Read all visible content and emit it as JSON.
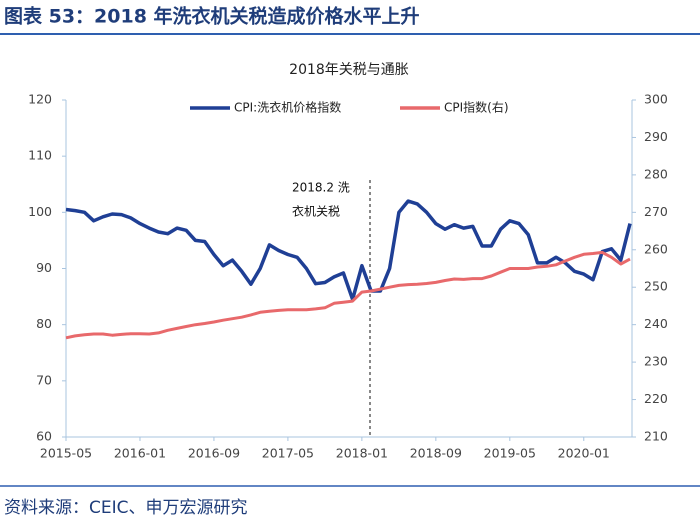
{
  "header": {
    "title": "图表 53：2018 年洗衣机关税造成价格水平上升"
  },
  "source": "资料来源：CEIC、申万宏源研究",
  "chart_data": {
    "type": "line",
    "title": "2018年关税与通胀",
    "annotation": [
      "2018.2 洗",
      "衣机关税"
    ],
    "categories": [
      "2015-05",
      null,
      null,
      null,
      null,
      null,
      null,
      null,
      "2016-01",
      null,
      null,
      null,
      null,
      null,
      null,
      null,
      "2016-09",
      null,
      null,
      null,
      null,
      null,
      null,
      null,
      "2017-05",
      null,
      null,
      null,
      null,
      null,
      null,
      null,
      "2018-01",
      null,
      null,
      null,
      null,
      null,
      null,
      null,
      "2018-09",
      null,
      null,
      null,
      null,
      null,
      null,
      null,
      "2019-05",
      null,
      null,
      null,
      null,
      null,
      null,
      null,
      "2020-01",
      null,
      null,
      null,
      null,
      null
    ],
    "ylim": [
      60,
      120
    ],
    "yticks": [
      60,
      70,
      80,
      90,
      100,
      110,
      120
    ],
    "y2lim": [
      210,
      300
    ],
    "y2ticks": [
      210,
      220,
      230,
      240,
      250,
      260,
      270,
      280,
      290,
      300
    ],
    "series": [
      {
        "name": "CPI:洗衣机价格指数",
        "color": "#1f3f95",
        "values": [
          100.5,
          100.3,
          100,
          98.5,
          99.2,
          99.7,
          99.6,
          99,
          98,
          97.2,
          96.5,
          96.2,
          97.2,
          96.8,
          95,
          94.8,
          92.5,
          90.5,
          91.5,
          89.5,
          87.2,
          90,
          94.2,
          93.2,
          92.5,
          92,
          90,
          87.3,
          87.5,
          88.5,
          89.2,
          84.5,
          90.5,
          86,
          86,
          90,
          100,
          102,
          101.5,
          100,
          98,
          97,
          97.8,
          97.2,
          97.5,
          94,
          94,
          97,
          98.5,
          98,
          96,
          91,
          91,
          92,
          91,
          89.5,
          89,
          88,
          93,
          93.5,
          91.5,
          98
        ]
      },
      {
        "name": "CPI指数(右)",
        "color": "#e8696b",
        "axis": "y2",
        "values": [
          236.5,
          237,
          237.3,
          237.5,
          237.5,
          237.2,
          237.4,
          237.6,
          237.6,
          237.5,
          237.8,
          238.5,
          239,
          239.5,
          240,
          240.3,
          240.7,
          241.2,
          241.6,
          242,
          242.6,
          243.3,
          243.6,
          243.8,
          244,
          244,
          244,
          244.2,
          244.5,
          245.7,
          246,
          246.3,
          248.7,
          249,
          249.5,
          250,
          250.5,
          250.7,
          250.8,
          251,
          251.3,
          251.8,
          252.2,
          252.1,
          252.3,
          252.3,
          253,
          254,
          255,
          255,
          255,
          255.4,
          255.6,
          256,
          257,
          258,
          258.8,
          259,
          259.3,
          258,
          256.2,
          257.5
        ]
      }
    ]
  }
}
